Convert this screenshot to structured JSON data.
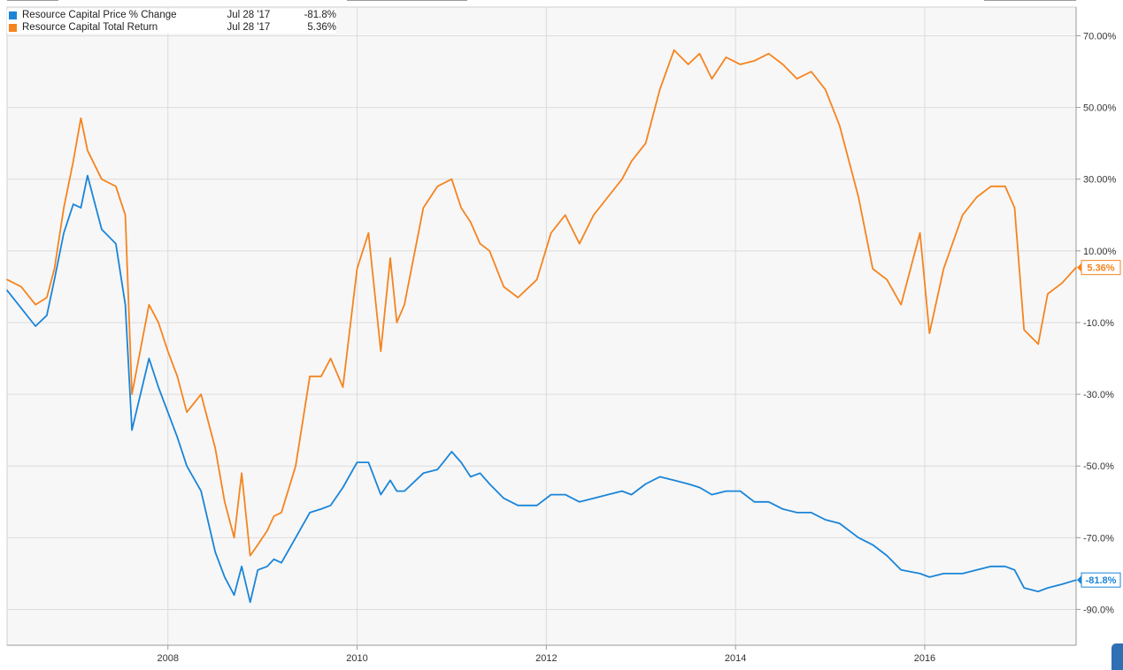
{
  "chart_data": {
    "type": "line",
    "title": "",
    "xlabel": "",
    "ylabel": "",
    "x_ticks": [
      "2008",
      "2010",
      "2012",
      "2014",
      "2016"
    ],
    "y_ticks": [
      "70.00%",
      "50.00%",
      "30.00%",
      "10.00%",
      "-10.0%",
      "-30.0%",
      "-50.0%",
      "-70.0%",
      "-90.0%"
    ],
    "y_tick_values": [
      70,
      50,
      30,
      10,
      -10,
      -30,
      -50,
      -70,
      -90
    ],
    "x_range": [
      2006.3,
      2017.6
    ],
    "ylim": [
      -100,
      78
    ],
    "grid": true,
    "legend_position": "top-left",
    "series": [
      {
        "name": "Resource Capital Price % Change",
        "color": "#1a85d8",
        "date_label": "Jul 28 '17",
        "last_value_label": "-81.8%",
        "end_label": "-81.8%",
        "x": [
          2006.3,
          2006.45,
          2006.6,
          2006.72,
          2006.8,
          2006.9,
          2007.0,
          2007.08,
          2007.15,
          2007.3,
          2007.45,
          2007.55,
          2007.62,
          2007.8,
          2007.9,
          2008.0,
          2008.1,
          2008.2,
          2008.35,
          2008.5,
          2008.6,
          2008.7,
          2008.78,
          2008.87,
          2008.95,
          2009.05,
          2009.12,
          2009.2,
          2009.35,
          2009.5,
          2009.62,
          2009.72,
          2009.85,
          2010.0,
          2010.12,
          2010.25,
          2010.35,
          2010.42,
          2010.5,
          2010.7,
          2010.85,
          2011.0,
          2011.1,
          2011.2,
          2011.3,
          2011.4,
          2011.55,
          2011.7,
          2011.9,
          2012.05,
          2012.2,
          2012.35,
          2012.5,
          2012.65,
          2012.8,
          2012.9,
          2013.05,
          2013.2,
          2013.35,
          2013.5,
          2013.62,
          2013.75,
          2013.9,
          2014.05,
          2014.2,
          2014.35,
          2014.5,
          2014.65,
          2014.8,
          2014.95,
          2015.1,
          2015.3,
          2015.45,
          2015.6,
          2015.75,
          2015.95,
          2016.05,
          2016.2,
          2016.4,
          2016.55,
          2016.7,
          2016.85,
          2016.95,
          2017.05,
          2017.2,
          2017.3,
          2017.45,
          2017.6
        ],
        "values": [
          -1,
          -6,
          -11,
          -8,
          2,
          15,
          23,
          22,
          31,
          16,
          12,
          -5,
          -40,
          -20,
          -28,
          -35,
          -42,
          -50,
          -57,
          -74,
          -81,
          -86,
          -78,
          -88,
          -79,
          -78,
          -76,
          -77,
          -70,
          -63,
          -62,
          -61,
          -56,
          -49,
          -49,
          -58,
          -54,
          -57,
          -57,
          -52,
          -51,
          -46,
          -49,
          -53,
          -52,
          -55,
          -59,
          -61,
          -61,
          -58,
          -58,
          -60,
          -59,
          -58,
          -57,
          -58,
          -55,
          -53,
          -54,
          -55,
          -56,
          -58,
          -57,
          -57,
          -60,
          -60,
          -62,
          -63,
          -63,
          -65,
          -66,
          -70,
          -72,
          -75,
          -79,
          -80,
          -81,
          -80,
          -80,
          -79,
          -78,
          -78,
          -79,
          -84,
          -85,
          -84,
          -83,
          -81.8
        ]
      },
      {
        "name": "Resource Capital Total Return",
        "color": "#f5841f",
        "date_label": "Jul 28 '17",
        "last_value_label": "5.36%",
        "end_label": "5.36%",
        "x": [
          2006.3,
          2006.45,
          2006.6,
          2006.72,
          2006.8,
          2006.9,
          2007.0,
          2007.08,
          2007.15,
          2007.3,
          2007.45,
          2007.55,
          2007.62,
          2007.8,
          2007.9,
          2008.0,
          2008.1,
          2008.2,
          2008.35,
          2008.5,
          2008.6,
          2008.7,
          2008.78,
          2008.87,
          2008.95,
          2009.05,
          2009.12,
          2009.2,
          2009.35,
          2009.5,
          2009.62,
          2009.72,
          2009.85,
          2010.0,
          2010.12,
          2010.25,
          2010.35,
          2010.42,
          2010.5,
          2010.7,
          2010.85,
          2011.0,
          2011.1,
          2011.2,
          2011.3,
          2011.4,
          2011.55,
          2011.7,
          2011.9,
          2012.05,
          2012.2,
          2012.35,
          2012.5,
          2012.65,
          2012.8,
          2012.9,
          2013.05,
          2013.2,
          2013.35,
          2013.5,
          2013.62,
          2013.75,
          2013.9,
          2014.05,
          2014.2,
          2014.35,
          2014.5,
          2014.65,
          2014.8,
          2014.95,
          2015.1,
          2015.3,
          2015.45,
          2015.6,
          2015.75,
          2015.95,
          2016.05,
          2016.2,
          2016.4,
          2016.55,
          2016.7,
          2016.85,
          2016.95,
          2017.05,
          2017.2,
          2017.3,
          2017.45,
          2017.6
        ],
        "values": [
          2,
          0,
          -5,
          -3,
          5,
          22,
          35,
          47,
          38,
          30,
          28,
          20,
          -30,
          -5,
          -10,
          -18,
          -25,
          -35,
          -30,
          -45,
          -60,
          -70,
          -52,
          -75,
          -72,
          -68,
          -64,
          -63,
          -50,
          -25,
          -25,
          -20,
          -28,
          5,
          15,
          -18,
          8,
          -10,
          -5,
          22,
          28,
          30,
          22,
          18,
          12,
          10,
          0,
          -3,
          2,
          15,
          20,
          12,
          20,
          25,
          30,
          35,
          40,
          55,
          66,
          62,
          65,
          58,
          64,
          62,
          63,
          65,
          62,
          58,
          60,
          55,
          45,
          25,
          5,
          2,
          -5,
          15,
          -13,
          5,
          20,
          25,
          28,
          28,
          22,
          -12,
          -16,
          -2,
          1,
          5.36
        ]
      }
    ]
  }
}
